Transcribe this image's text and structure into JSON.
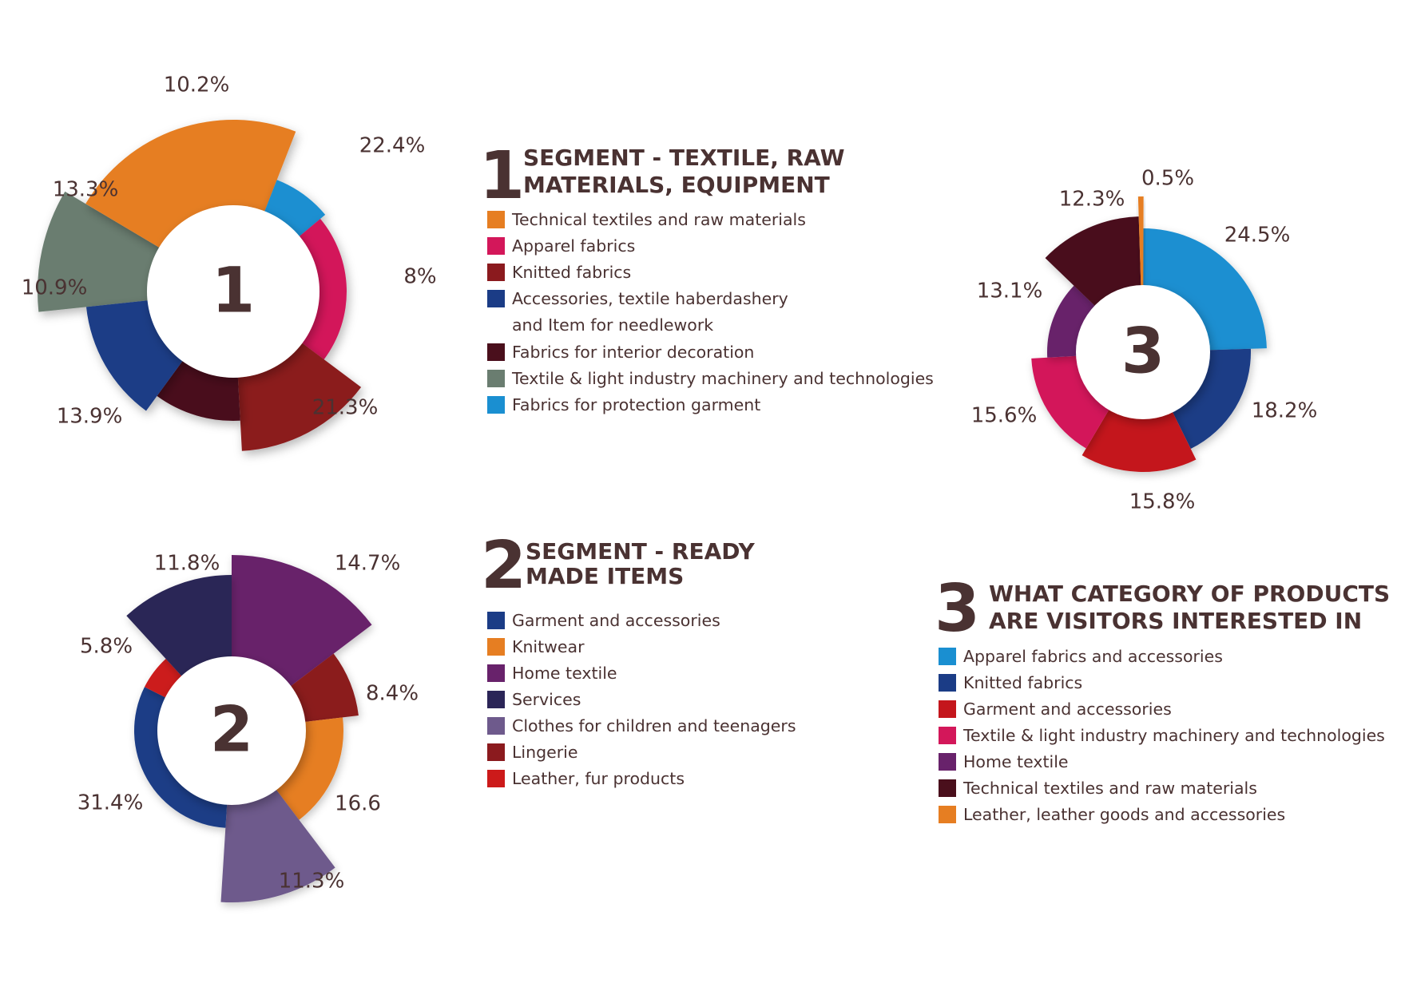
{
  "chart_data": [
    {
      "type": "pie",
      "center_label": "1",
      "number": "1",
      "title": "SEGMENT - TEXTILE, RAW MATERIALS, EQUIPMENT",
      "slices": [
        {
          "label": "Textile & light industry machinery and technologies",
          "value": 10.2,
          "display": "10.2%",
          "color": "#6a7d70"
        },
        {
          "label": "Technical textiles and raw materials",
          "value": 22.4,
          "display": "22.4%",
          "color": "#e67e22"
        },
        {
          "label": "Fabrics for protection garment",
          "value": 8,
          "display": "8%",
          "color": "#1a8fd1"
        },
        {
          "label": "Apparel fabrics",
          "value": 21.3,
          "display": "21.3%",
          "color": "#d3175a"
        },
        {
          "label": "Knitted fabrics",
          "value": 13.9,
          "display": "13.9%",
          "color": "#8b1a1e"
        },
        {
          "label": "Fabrics for interior decoration",
          "value": 10.9,
          "display": "10.9%",
          "color": "#4a0f1c"
        },
        {
          "label": "Accessories, textile haberdashery and Item for needlework",
          "value": 13.3,
          "display": "13.3%",
          "color": "#1b3c86"
        }
      ],
      "legend": [
        {
          "label": "Technical textiles and raw materials",
          "color": "#e67e22"
        },
        {
          "label": "Apparel fabrics",
          "color": "#d3175a"
        },
        {
          "label": "Knitted fabrics",
          "color": "#8b1a1e"
        },
        {
          "label": "Accessories, textile haberdashery",
          "label2": "and Item for needlework",
          "color": "#1b3c86"
        },
        {
          "label": "Fabrics for interior decoration",
          "color": "#4a0f1c"
        },
        {
          "label": "Textile & light industry machinery and technologies",
          "color": "#6a7d70"
        },
        {
          "label": "Fabrics for protection garment",
          "color": "#1a8fd1"
        }
      ]
    },
    {
      "type": "pie",
      "center_label": "2",
      "number": "2",
      "title": "SEGMENT - READY MADE ITEMS",
      "slices": [
        {
          "label": "Home textile",
          "value": 14.7,
          "display": "14.7%",
          "color": "#68226b"
        },
        {
          "label": "Lingerie",
          "value": 8.4,
          "display": "8.4%",
          "color": "#8b1a1e"
        },
        {
          "label": "Knitwear",
          "value": 16.6,
          "display": "16.6",
          "color": "#e67e22"
        },
        {
          "label": "Clothes for children and teenagers",
          "value": 11.3,
          "display": "11.3%",
          "color": "#6e5a8c"
        },
        {
          "label": "Garment and accessories",
          "value": 31.4,
          "display": "31.4%",
          "color": "#1b3c86"
        },
        {
          "label": "Leather, fur products",
          "value": 5.8,
          "display": "5.8%",
          "color": "#cc1a1a"
        },
        {
          "label": "Services",
          "value": 11.8,
          "display": "11.8%",
          "color": "#2b2557"
        }
      ],
      "legend": [
        {
          "label": "Garment and accessories",
          "color": "#1b3c86"
        },
        {
          "label": "Knitwear",
          "color": "#e67e22"
        },
        {
          "label": "Home textile",
          "color": "#68226b"
        },
        {
          "label": "Services",
          "color": "#2b2557"
        },
        {
          "label": "Clothes for children and teenagers",
          "color": "#6e5a8c"
        },
        {
          "label": "Lingerie",
          "color": "#8b1a1e"
        },
        {
          "label": "Leather, fur products",
          "color": "#cc1a1a"
        }
      ]
    },
    {
      "type": "pie",
      "center_label": "3",
      "number": "3",
      "title": "WHAT CATEGORY OF PRODUCTS ARE VISITORS INTERESTED IN",
      "slices": [
        {
          "label": "Apparel fabrics and accessories",
          "value": 24.5,
          "display": "24.5%",
          "color": "#1a8fd1"
        },
        {
          "label": "Knitted fabrics",
          "value": 18.2,
          "display": "18.2%",
          "color": "#1b3c86"
        },
        {
          "label": "Garment and accessories",
          "value": 15.8,
          "display": "15.8%",
          "color": "#c4161c"
        },
        {
          "label": "Textile & light industry machinery and technologies",
          "value": 15.6,
          "display": "15.6%",
          "color": "#d3175a"
        },
        {
          "label": "Home textile",
          "value": 13.1,
          "display": "13.1%",
          "color": "#68226b"
        },
        {
          "label": "Technical textiles and raw materials",
          "value": 12.3,
          "display": "12.3%",
          "color": "#4a0f1c"
        },
        {
          "label": "Leather, leather goods and accessories",
          "value": 0.5,
          "display": "0.5%",
          "color": "#e67e22"
        }
      ],
      "legend": [
        {
          "label": "Apparel fabrics and accessories",
          "color": "#1a8fd1"
        },
        {
          "label": "Knitted fabrics",
          "color": "#1b3c86"
        },
        {
          "label": "Garment and accessories",
          "color": "#c4161c"
        },
        {
          "label": "Textile & light industry machinery and technologies",
          "color": "#d3175a"
        },
        {
          "label": "Home textile",
          "color": "#68226b"
        },
        {
          "label": "Technical textiles and raw materials",
          "color": "#4a0f1c"
        },
        {
          "label": "Leather, leather goods and accessories",
          "color": "#e67e22"
        }
      ]
    }
  ]
}
